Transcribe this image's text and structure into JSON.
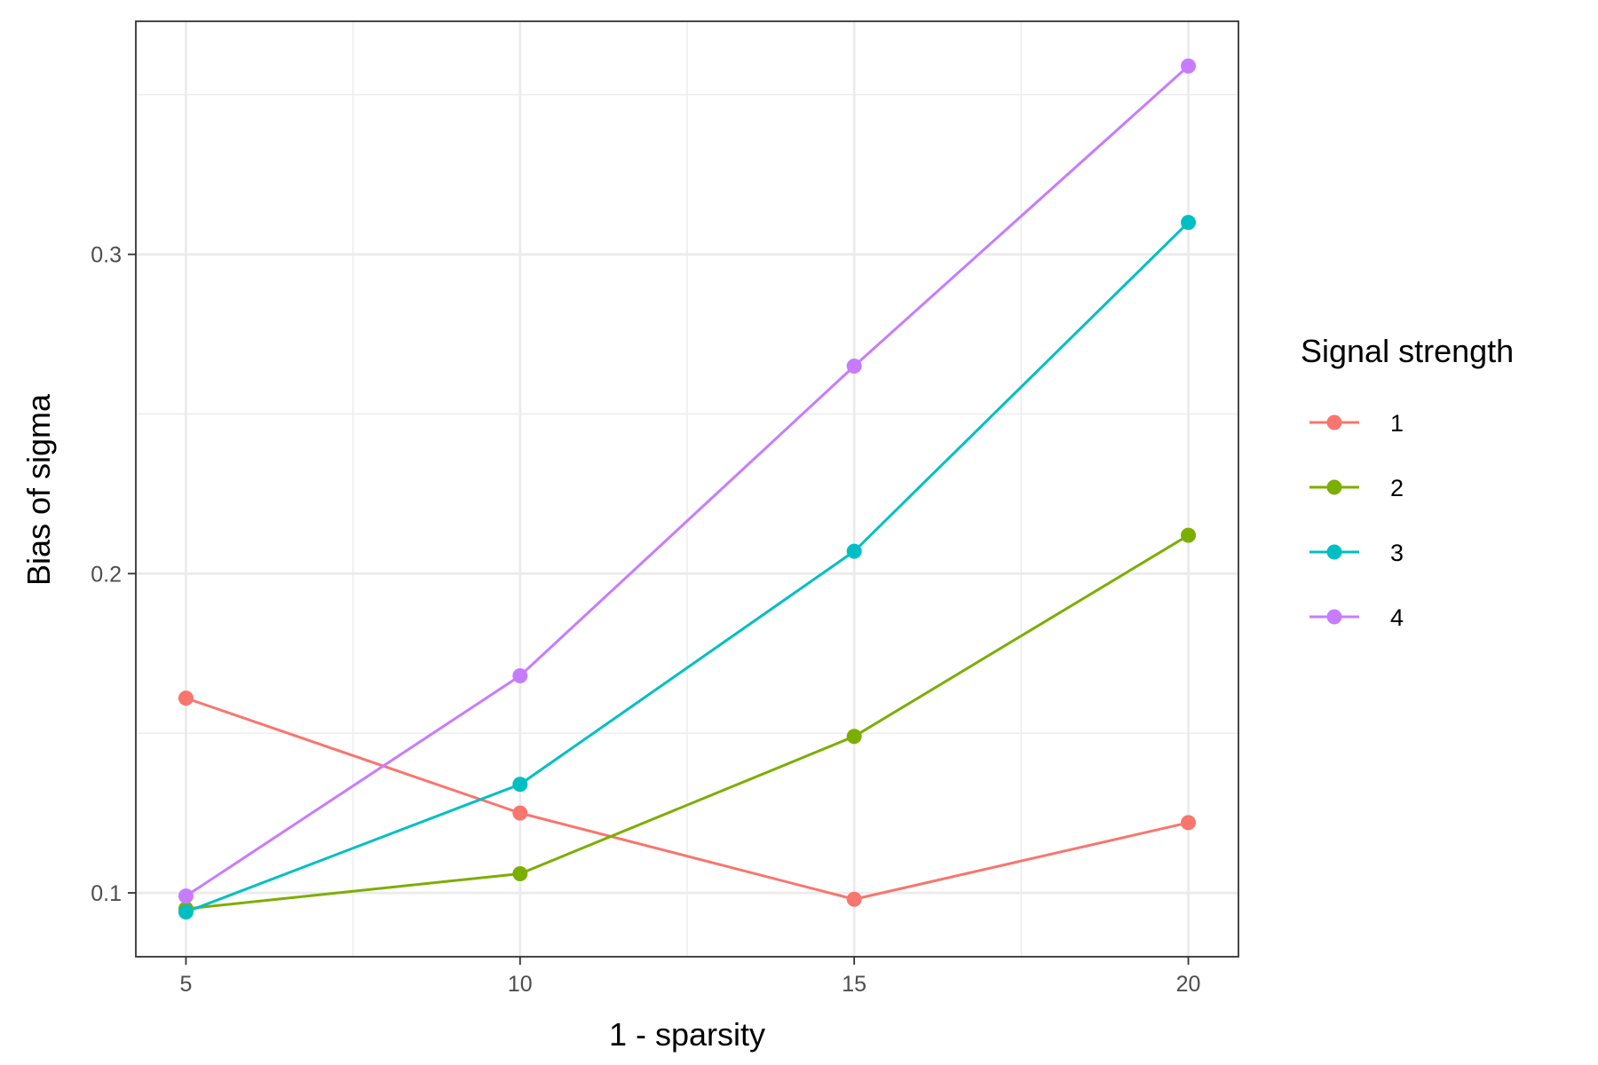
{
  "chart_data": {
    "type": "line",
    "title": "",
    "xlabel": "1 - sparsity",
    "ylabel": "Bias of sigma",
    "x": [
      5,
      10,
      15,
      20
    ],
    "xlim": [
      4.25,
      20.75
    ],
    "ylim": [
      0.08,
      0.373
    ],
    "x_ticks": [
      5,
      10,
      15,
      20
    ],
    "x_tick_labels": [
      "5",
      "10",
      "15",
      "20"
    ],
    "y_ticks": [
      0.1,
      0.2,
      0.3
    ],
    "y_tick_labels": [
      "0.1",
      "0.2",
      "0.3"
    ],
    "x_minor_ticks": [
      7.5,
      12.5,
      17.5
    ],
    "y_minor_ticks": [
      0.15,
      0.25,
      0.35
    ],
    "grid": true,
    "legend": {
      "title": "Signal strength",
      "position": "right"
    },
    "series": [
      {
        "name": "1",
        "color": "#F8766D",
        "values": [
          0.161,
          0.125,
          0.098,
          0.122
        ]
      },
      {
        "name": "2",
        "color": "#7CAE00",
        "values": [
          0.095,
          0.106,
          0.149,
          0.212
        ]
      },
      {
        "name": "3",
        "color": "#00BFC4",
        "values": [
          0.094,
          0.134,
          0.207,
          0.31
        ]
      },
      {
        "name": "4",
        "color": "#C77CFF",
        "values": [
          0.099,
          0.168,
          0.265,
          0.359
        ]
      }
    ]
  }
}
